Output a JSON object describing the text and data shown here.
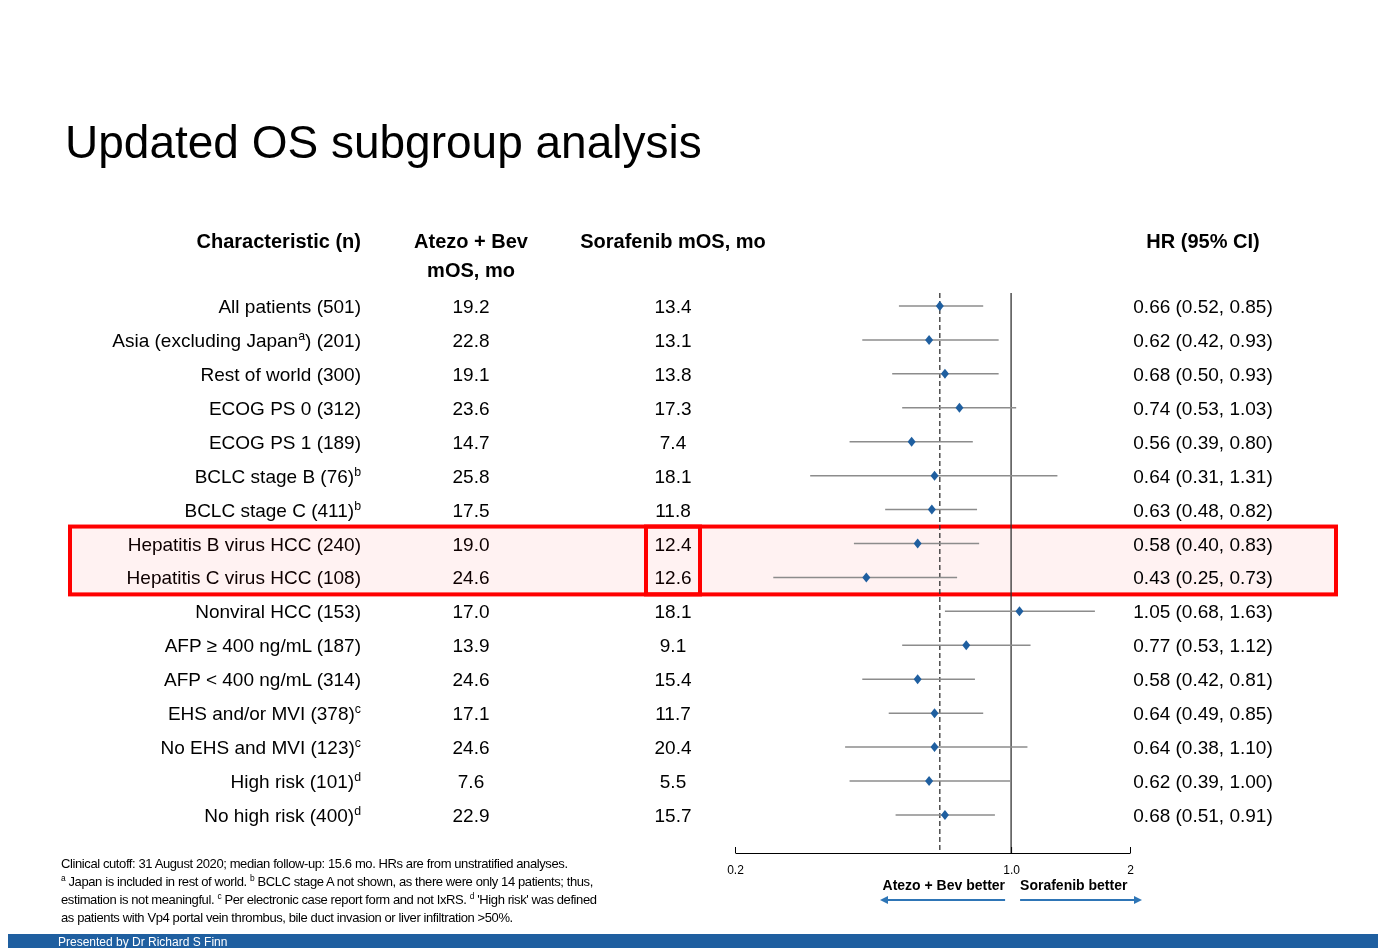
{
  "chart_data": [
    {
      "type": "other",
      "title": "Updated OS subgroup analysis",
      "categories": [
        "All patients (501)",
        "Asia (excluding Japan$^{a}$) (201)",
        "Rest of world (300)",
        "ECOG PS 0 (312)",
        "ECOG PS 1 (189)",
        "BCLC stage B (76)$^{b}$",
        "BCLC stage C (411)$^{b}$",
        "Hepatitis B virus HCC (240)",
        "Hepatitis C virus HCC (108)",
        "Nonviral HCC (153)",
        "AFP ≥ 400 ng/mL (187)",
        "AFP < 400 ng/mL (314)",
        "EHS and/or MVI (378)$^{c}$",
        "No EHS and MVI (123)$^{c}$",
        "High risk (101)$^{d}$",
        "No high risk (400)$^{d}$"
      ],
      "series": [
        {
          "name": "Atezo + Bev mOS, mo",
          "color": "#000000",
          "values": [
            19.2,
            22.8,
            19.1,
            23.6,
            14.7,
            25.8,
            17.5,
            19.0,
            24.6,
            17.0,
            13.9,
            24.6,
            17.1,
            24.6,
            7.6,
            22.9
          ],
          "value_labels": [
            "19.2",
            "22.8",
            "19.1",
            "23.6",
            "14.7",
            "25.8",
            "17.5",
            "19.0",
            "24.6",
            "17.0",
            "13.9",
            "24.6",
            "17.1",
            "24.6",
            "7.6",
            "22.9"
          ]
        },
        {
          "name": "Sorafenib mOS, mo",
          "color": "#000000",
          "values": [
            13.4,
            13.1,
            13.8,
            17.3,
            7.4,
            18.1,
            11.8,
            12.4,
            12.6,
            18.1,
            9.1,
            15.4,
            11.7,
            20.4,
            5.5,
            15.7
          ],
          "value_labels": [
            "13.4",
            "13.1",
            "13.8",
            "17.3",
            "7.4",
            "18.1",
            "11.8",
            "12.4",
            "12.6",
            "18.1",
            "9.1",
            "15.4",
            "11.7",
            "20.4",
            "5.5",
            "15.7"
          ]
        }
      ],
      "annotations": [
        "Clinical cutoff: 31 August 2020; median follow-up: 15.6 mo. HRs are from unstratified analyses.",
        "$^{a}$ Japan is included in rest of world. $^{b}$ BCLC stage A not shown, as there were only 14 patients; thus,",
        "estimation is not meaningful. $^{c}$ Per electronic case report form and not IxRS. $^{d}$ 'High risk' was defined",
        "as patients with Vp4 portal vein thrombus, bile duct invasion or liver infiltration >50%.",
        "Presented by Dr Richard S Finn"
      ]
    },
    {
      "type": "scatter",
      "orientation": "horizontal",
      "ylabel": "Characteristic (n)",
      "tick_labels": "x",
      "categories": [
        "All patients (501)",
        "Asia (excluding Japan$^{a}$) (201)",
        "Rest of world (300)",
        "ECOG PS 0 (312)",
        "ECOG PS 1 (189)",
        "BCLC stage B (76)$^{b}$",
        "BCLC stage C (411)$^{b}$",
        "Hepatitis B virus HCC (240)",
        "Hepatitis C virus HCC (108)",
        "Nonviral HCC (153)",
        "AFP ≥ 400 ng/mL (187)",
        "AFP < 400 ng/mL (314)",
        "EHS and/or MVI (378)$^{c}$",
        "No EHS and MVI (123)$^{c}$",
        "High risk (101)$^{d}$",
        "No high risk (400)$^{d}$"
      ],
      "series": [
        {
          "name": "HR (95% CI)",
          "color": "#1f5fa0",
          "values": [
            0.66,
            0.62,
            0.68,
            0.74,
            0.56,
            0.64,
            0.63,
            0.58,
            0.43,
            1.05,
            0.77,
            0.58,
            0.64,
            0.64,
            0.62,
            0.68
          ],
          "errors": [
            [
              0.52,
              0.85
            ],
            [
              0.42,
              0.93
            ],
            [
              0.5,
              0.93
            ],
            [
              0.53,
              1.03
            ],
            [
              0.39,
              0.8
            ],
            [
              0.31,
              1.31
            ],
            [
              0.48,
              0.82
            ],
            [
              0.4,
              0.83
            ],
            [
              0.25,
              0.73
            ],
            [
              0.68,
              1.63
            ],
            [
              0.53,
              1.12
            ],
            [
              0.42,
              0.81
            ],
            [
              0.49,
              0.85
            ],
            [
              0.38,
              1.1
            ],
            [
              0.39,
              1.0
            ],
            [
              0.51,
              0.91
            ]
          ],
          "value_labels": [
            "0.66 (0.52, 0.85)",
            "0.62 (0.42, 0.93)",
            "0.68 (0.50, 0.93)",
            "0.74 (0.53, 1.03)",
            "0.56 (0.39, 0.80)",
            "0.64 (0.31, 1.31)",
            "0.63 (0.48, 0.82)",
            "0.58 (0.40, 0.83)",
            "0.43 (0.25, 0.73)",
            "1.05 (0.68, 1.63)",
            "0.77 (0.53, 1.12)",
            "0.58 (0.42, 0.81)",
            "0.64 (0.49, 0.85)",
            "0.64 (0.38, 1.10)",
            "0.62 (0.39, 1.00)",
            "0.68 (0.51, 0.91)"
          ]
        }
      ],
      "log": "x",
      "xlim": [
        0.2,
        2
      ],
      "xticks": [
        {
          "value": 0.2,
          "label": "0.2"
        },
        {
          "value": 1,
          "label": "1.0"
        },
        {
          "value": 2,
          "label": "2"
        }
      ],
      "marker": "diamond",
      "ref_lines": [
        {
          "axis": "x",
          "value": 1,
          "line_style": "solid",
          "color": "#333333"
        },
        {
          "axis": "x",
          "value": 0.66,
          "line_style": "dashed",
          "color": "#333333"
        }
      ],
      "bands": [
        {
          "axis": "y",
          "from": "Hepatitis B virus HCC (240)",
          "to": "Hepatitis C virus HCC (108)",
          "color": "#ff0000"
        }
      ],
      "annotations": [
        "Atezo + Bev better",
        "Sorafenib better"
      ]
    }
  ]
}
